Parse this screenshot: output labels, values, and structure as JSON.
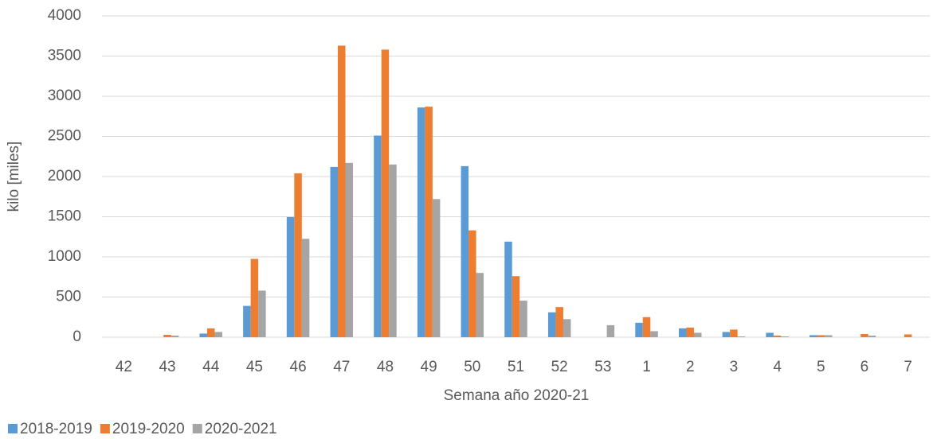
{
  "chart_data": {
    "type": "bar",
    "x_label": "Semana año 2020-21",
    "y_label": "kilo [miles]",
    "categories": [
      "42",
      "43",
      "44",
      "45",
      "46",
      "47",
      "48",
      "49",
      "50",
      "51",
      "52",
      "53",
      "1",
      "2",
      "3",
      "4",
      "5",
      "6",
      "7"
    ],
    "series": [
      {
        "name": "2018-2019",
        "color": "#5b9bd5",
        "values": [
          0,
          0,
          45,
          390,
          1495,
          2120,
          2510,
          2860,
          2130,
          1190,
          310,
          0,
          180,
          110,
          65,
          55,
          25,
          0,
          0
        ]
      },
      {
        "name": "2019-2020",
        "color": "#ed7d31",
        "values": [
          0,
          30,
          110,
          975,
          2040,
          3630,
          3580,
          2870,
          1330,
          760,
          375,
          0,
          250,
          120,
          95,
          20,
          25,
          40,
          35
        ]
      },
      {
        "name": "2020-2021",
        "color": "#a5a5a5",
        "values": [
          0,
          20,
          65,
          580,
          1225,
          2170,
          2150,
          1720,
          800,
          455,
          225,
          150,
          75,
          55,
          10,
          10,
          25,
          20,
          0
        ]
      }
    ],
    "ylim": [
      0,
      4000
    ],
    "yticks": [
      0,
      500,
      1000,
      1500,
      2000,
      2500,
      3000,
      3500,
      4000
    ],
    "grid": true,
    "legend": "bottom-left"
  }
}
